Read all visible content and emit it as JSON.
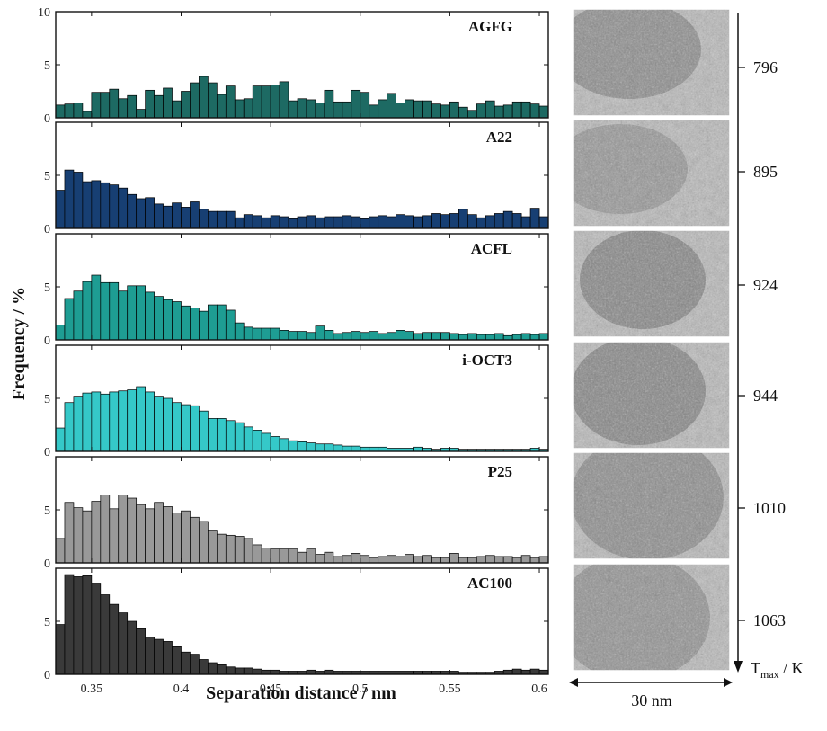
{
  "chart_data": {
    "type": "bar",
    "xlabel": "Separation distance / nm",
    "ylabel": "Frequency / %",
    "xlim": [
      0.33,
      0.605
    ],
    "ylim": [
      0,
      10
    ],
    "x_ticks": [
      "0.35",
      "0.4",
      "0.45",
      "0.5",
      "0.55",
      "0.6"
    ],
    "x_tick_values": [
      0.35,
      0.4,
      0.45,
      0.5,
      0.55,
      0.6
    ],
    "y_ticks": [
      0,
      5,
      10
    ],
    "bin_start": 0.33,
    "bin_width": 0.005,
    "legend": "none",
    "grid": false,
    "series": [
      {
        "name": "AGFG",
        "color": "#1d6a63",
        "values": [
          1.2,
          1.3,
          1.4,
          0.6,
          2.4,
          2.4,
          2.7,
          1.8,
          2.1,
          0.8,
          2.6,
          2.1,
          2.8,
          1.6,
          2.5,
          3.3,
          3.9,
          3.3,
          2.2,
          3.0,
          1.7,
          1.8,
          3.0,
          3.0,
          3.1,
          3.4,
          1.6,
          1.8,
          1.7,
          1.4,
          2.6,
          1.5,
          1.5,
          2.6,
          2.4,
          1.2,
          1.7,
          2.3,
          1.4,
          1.7,
          1.6,
          1.6,
          1.3,
          1.2,
          1.5,
          1.0,
          0.7,
          1.3,
          1.6,
          1.1,
          1.2,
          1.5,
          1.5,
          1.3,
          1.1
        ]
      },
      {
        "name": "A22",
        "color": "#173f73",
        "values": [
          3.6,
          5.5,
          5.3,
          4.4,
          4.5,
          4.3,
          4.1,
          3.8,
          3.2,
          2.8,
          2.9,
          2.3,
          2.1,
          2.4,
          2.0,
          2.5,
          1.8,
          1.6,
          1.6,
          1.6,
          1.0,
          1.3,
          1.2,
          1.0,
          1.2,
          1.1,
          0.9,
          1.1,
          1.2,
          1.0,
          1.1,
          1.1,
          1.2,
          1.1,
          0.9,
          1.1,
          1.2,
          1.1,
          1.3,
          1.2,
          1.1,
          1.2,
          1.4,
          1.3,
          1.4,
          1.8,
          1.3,
          1.0,
          1.2,
          1.4,
          1.6,
          1.4,
          1.1,
          1.9,
          1.1
        ]
      },
      {
        "name": "ACFL",
        "color": "#1e9d93",
        "values": [
          1.4,
          3.9,
          4.6,
          5.5,
          6.1,
          5.4,
          5.4,
          4.6,
          5.1,
          5.1,
          4.5,
          4.1,
          3.8,
          3.6,
          3.2,
          3.0,
          2.7,
          3.3,
          3.3,
          2.8,
          1.6,
          1.2,
          1.1,
          1.1,
          1.1,
          0.9,
          0.8,
          0.8,
          0.7,
          1.3,
          0.9,
          0.6,
          0.7,
          0.8,
          0.7,
          0.8,
          0.6,
          0.7,
          0.9,
          0.8,
          0.6,
          0.7,
          0.7,
          0.7,
          0.6,
          0.5,
          0.6,
          0.5,
          0.5,
          0.6,
          0.4,
          0.5,
          0.6,
          0.5,
          0.6
        ]
      },
      {
        "name": "i-OCT3",
        "color": "#35c8c8",
        "values": [
          2.2,
          4.6,
          5.2,
          5.5,
          5.6,
          5.4,
          5.6,
          5.7,
          5.8,
          6.1,
          5.6,
          5.2,
          5.0,
          4.6,
          4.4,
          4.3,
          3.8,
          3.1,
          3.1,
          2.9,
          2.7,
          2.3,
          2.0,
          1.7,
          1.4,
          1.2,
          1.0,
          0.9,
          0.8,
          0.7,
          0.7,
          0.6,
          0.5,
          0.5,
          0.4,
          0.4,
          0.4,
          0.3,
          0.3,
          0.3,
          0.4,
          0.3,
          0.2,
          0.3,
          0.3,
          0.2,
          0.2,
          0.2,
          0.2,
          0.2,
          0.2,
          0.2,
          0.2,
          0.3,
          0.2
        ]
      },
      {
        "name": "P25",
        "color": "#999999",
        "values": [
          2.3,
          5.7,
          5.2,
          4.9,
          5.8,
          6.4,
          5.1,
          6.4,
          6.1,
          5.5,
          5.1,
          5.7,
          5.3,
          4.7,
          4.9,
          4.3,
          3.9,
          3.0,
          2.7,
          2.6,
          2.5,
          2.3,
          1.7,
          1.4,
          1.3,
          1.3,
          1.3,
          1.0,
          1.3,
          0.8,
          1.0,
          0.6,
          0.7,
          0.9,
          0.7,
          0.5,
          0.6,
          0.7,
          0.6,
          0.8,
          0.6,
          0.7,
          0.5,
          0.5,
          0.9,
          0.5,
          0.5,
          0.6,
          0.7,
          0.6,
          0.6,
          0.5,
          0.7,
          0.5,
          0.6
        ]
      },
      {
        "name": "AC100",
        "color": "#3a3a3a",
        "values": [
          4.7,
          9.4,
          9.2,
          9.3,
          8.6,
          7.5,
          6.6,
          5.8,
          5.0,
          4.3,
          3.5,
          3.3,
          3.1,
          2.6,
          2.1,
          1.9,
          1.4,
          1.1,
          0.9,
          0.7,
          0.6,
          0.6,
          0.5,
          0.4,
          0.4,
          0.3,
          0.3,
          0.3,
          0.4,
          0.3,
          0.4,
          0.3,
          0.3,
          0.3,
          0.3,
          0.3,
          0.3,
          0.3,
          0.3,
          0.3,
          0.3,
          0.3,
          0.3,
          0.3,
          0.3,
          0.2,
          0.2,
          0.2,
          0.2,
          0.3,
          0.4,
          0.5,
          0.4,
          0.5,
          0.4
        ]
      }
    ]
  },
  "tmax_axis": {
    "label": "T",
    "label_subscript": "max",
    "label_unit": " / K",
    "values": [
      "796",
      "895",
      "924",
      "944",
      "1010",
      "1063"
    ]
  },
  "micrograph_strip": {
    "scale_label": "30 nm"
  }
}
